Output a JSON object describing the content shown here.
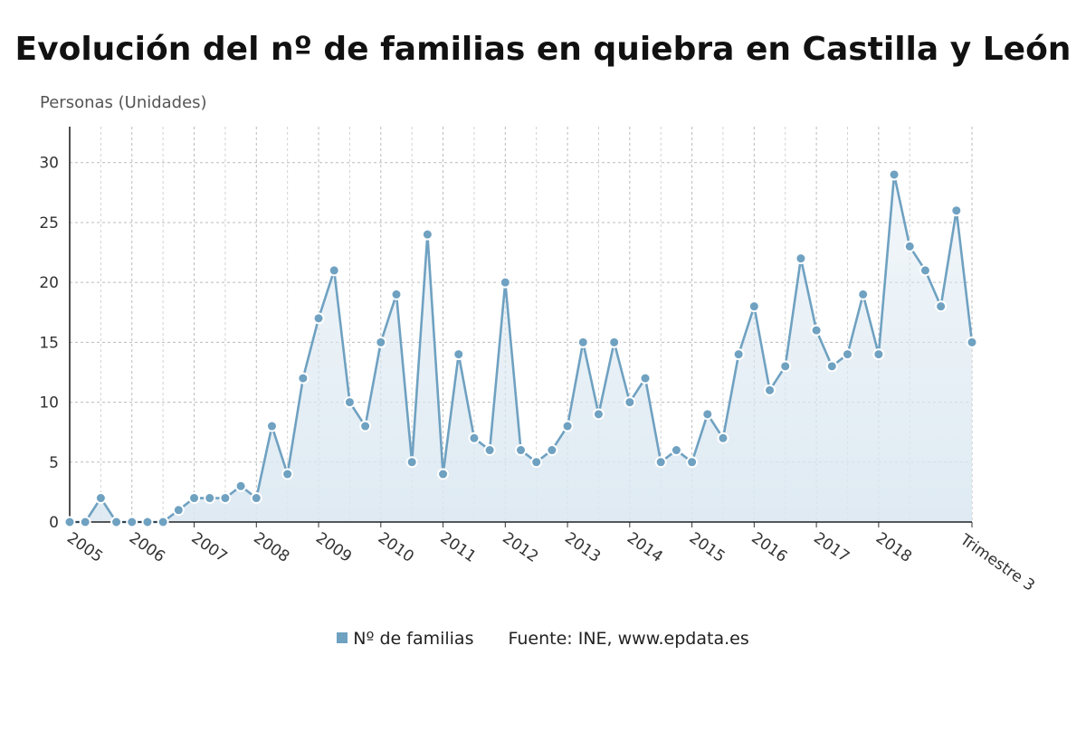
{
  "chart_data": {
    "type": "line",
    "title": "Evolución del nº de familias en quiebra en Castilla y León",
    "ylabel": "Personas (Unidades)",
    "xlabel": "",
    "ylim": [
      0,
      33
    ],
    "yticks": [
      0,
      5,
      10,
      15,
      20,
      25,
      30
    ],
    "x_tick_labels": [
      "2005",
      "2006",
      "2007",
      "2008",
      "2009",
      "2010",
      "2011",
      "2012",
      "2013",
      "2014",
      "2015",
      "2016",
      "2017",
      "2018",
      "Trimestre 3"
    ],
    "grid": true,
    "legend_position": "bottom",
    "series": [
      {
        "name": "Nº de familias",
        "color": "#6fa1c1",
        "fill": "area",
        "values": [
          0,
          0,
          2,
          0,
          0,
          0,
          0,
          1,
          2,
          2,
          2,
          3,
          2,
          8,
          4,
          12,
          17,
          21,
          10,
          8,
          15,
          19,
          5,
          24,
          4,
          14,
          7,
          6,
          20,
          6,
          5,
          6,
          8,
          15,
          9,
          15,
          10,
          12,
          5,
          6,
          5,
          9,
          7,
          14,
          18,
          11,
          13,
          22,
          16,
          13,
          14,
          19,
          14,
          29,
          23,
          21,
          18,
          26,
          15
        ]
      }
    ]
  },
  "legend": {
    "series_label": "Nº de familias",
    "source": "Fuente: INE, www.epdata.es"
  }
}
